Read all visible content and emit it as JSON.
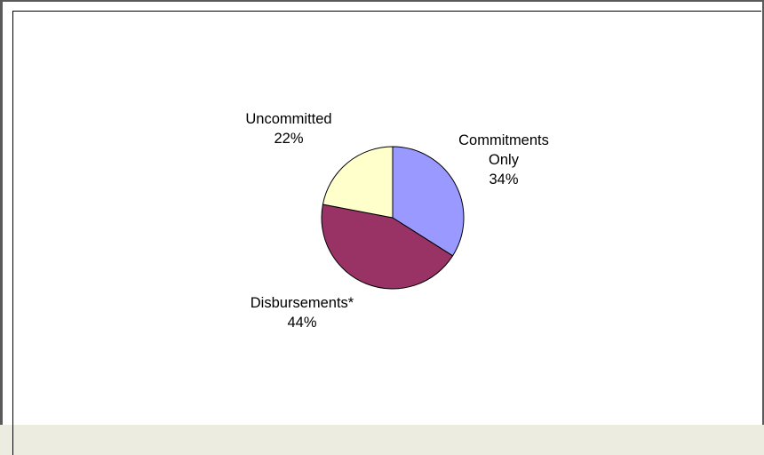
{
  "chart_data": {
    "type": "pie",
    "title": "",
    "slices": [
      {
        "label_lines": [
          "Commitments",
          "Only"
        ],
        "percent_label": "34%",
        "value": 34,
        "color": "#9999ff"
      },
      {
        "label_lines": [
          "Disbursements*"
        ],
        "percent_label": "44%",
        "value": 44,
        "color": "#993366"
      },
      {
        "label_lines": [
          "Uncommitted"
        ],
        "percent_label": "22%",
        "value": 22,
        "color": "#ffffcc"
      }
    ],
    "start_angle_deg": 0,
    "direction": "clockwise",
    "legend": "none"
  }
}
